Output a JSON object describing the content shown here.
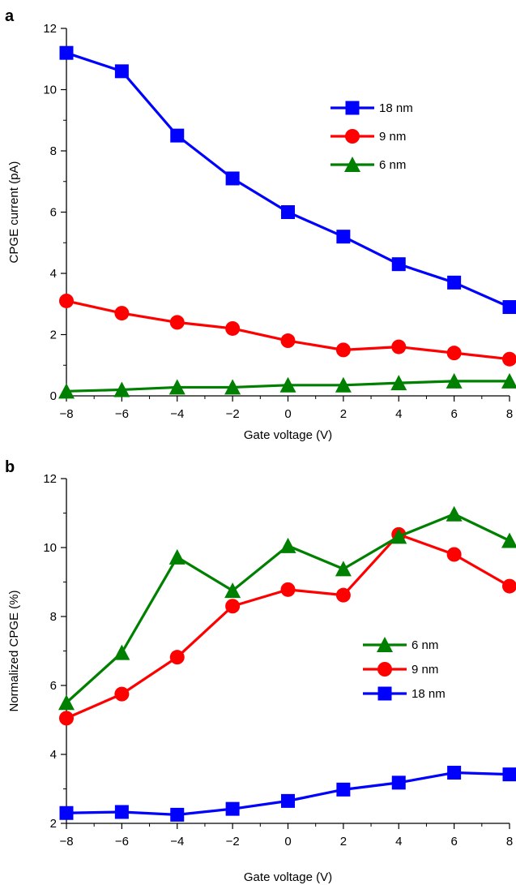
{
  "chart_data": [
    {
      "type": "line",
      "panel_label": "a",
      "xlabel": "Gate voltage (V)",
      "ylabel": "CPGE current (pA)",
      "xlim": [
        -8,
        8
      ],
      "ylim": [
        0,
        12
      ],
      "xticks": [
        -8,
        -6,
        -4,
        -2,
        0,
        2,
        4,
        6,
        8
      ],
      "yticks": [
        0,
        2,
        4,
        6,
        8,
        10,
        12
      ],
      "xtick_labels": [
        "−8",
        "−6",
        "−4",
        "−2",
        "0",
        "2",
        "4",
        "6",
        "8"
      ],
      "ytick_labels": [
        "0",
        "2",
        "4",
        "6",
        "8",
        "10",
        "12"
      ],
      "grid": false,
      "legend_position": "upper-right",
      "x": [
        -8,
        -6,
        -4,
        -2,
        0,
        2,
        4,
        6,
        8
      ],
      "series": [
        {
          "name": "18 nm",
          "color": "#0000ff",
          "marker": "square",
          "values": [
            11.2,
            10.6,
            8.5,
            7.1,
            6.0,
            5.2,
            4.3,
            3.7,
            2.9
          ]
        },
        {
          "name": "9 nm",
          "color": "#ff0000",
          "marker": "circle",
          "values": [
            3.1,
            2.7,
            2.4,
            2.2,
            1.8,
            1.5,
            1.6,
            1.4,
            1.2
          ]
        },
        {
          "name": "6 nm",
          "color": "#008000",
          "marker": "triangle",
          "values": [
            0.15,
            0.2,
            0.28,
            0.28,
            0.35,
            0.35,
            0.42,
            0.48,
            0.48
          ]
        }
      ],
      "legend_order": [
        "18 nm",
        "9 nm",
        "6 nm"
      ]
    },
    {
      "type": "line",
      "panel_label": "b",
      "xlabel": "Gate voltage (V)",
      "ylabel": "Normalized CPGE (%)",
      "xlim": [
        -8,
        8
      ],
      "ylim": [
        2,
        12
      ],
      "xticks": [
        -8,
        -6,
        -4,
        -2,
        0,
        2,
        4,
        6,
        8
      ],
      "yticks": [
        2,
        4,
        6,
        8,
        10,
        12
      ],
      "xtick_labels": [
        "−8",
        "−6",
        "−4",
        "−2",
        "0",
        "2",
        "4",
        "6",
        "8"
      ],
      "ytick_labels": [
        "2",
        "4",
        "6",
        "8",
        "10",
        "12"
      ],
      "grid": false,
      "legend_position": "center-right",
      "x": [
        -8,
        -6,
        -4,
        -2,
        0,
        2,
        4,
        6,
        8
      ],
      "series": [
        {
          "name": "18 nm",
          "color": "#0000ff",
          "marker": "square",
          "values": [
            2.3,
            2.33,
            2.25,
            2.42,
            2.65,
            2.98,
            3.18,
            3.47,
            3.42
          ]
        },
        {
          "name": "9 nm",
          "color": "#ff0000",
          "marker": "circle",
          "values": [
            5.05,
            5.75,
            6.82,
            8.3,
            8.78,
            8.62,
            10.38,
            9.8,
            8.88
          ]
        },
        {
          "name": "6 nm",
          "color": "#008000",
          "marker": "triangle",
          "values": [
            5.5,
            6.95,
            9.72,
            8.75,
            10.05,
            9.38,
            10.32,
            10.97,
            10.2
          ]
        }
      ],
      "legend_order": [
        "6 nm",
        "9 nm",
        "18 nm"
      ]
    }
  ]
}
